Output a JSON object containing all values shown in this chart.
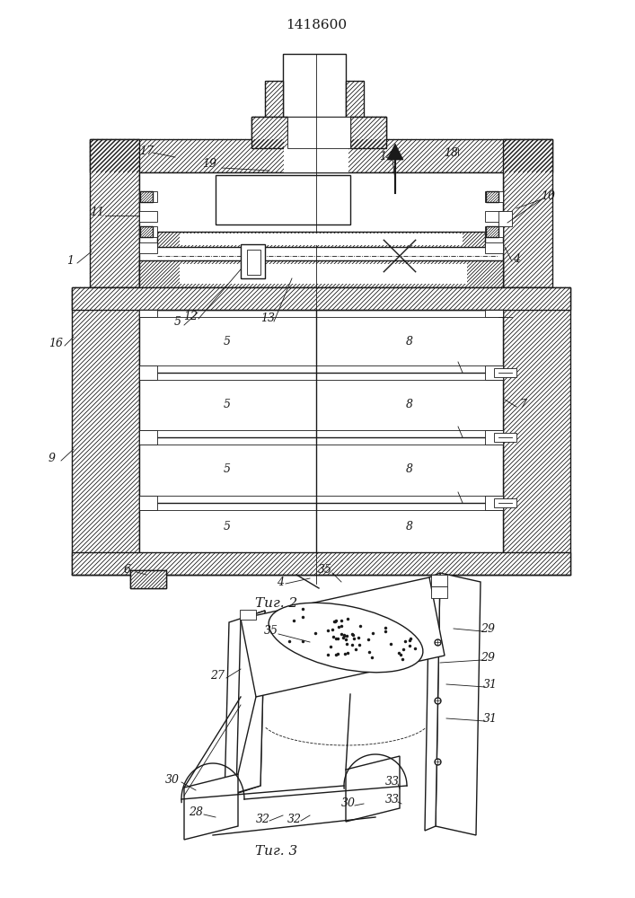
{
  "title": "1418600",
  "fig2_label": "Τиг. 2",
  "fig3_label": "Τиг. 3",
  "bg_color": "#ffffff",
  "line_color": "#1a1a1a"
}
